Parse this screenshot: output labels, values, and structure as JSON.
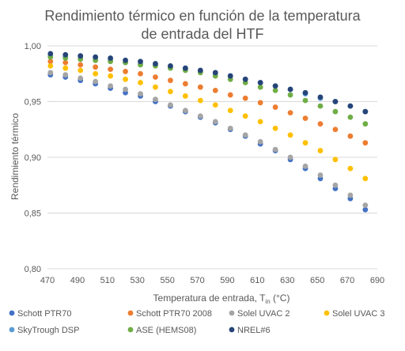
{
  "chart_data": {
    "type": "scatter",
    "title_line1": "Rendimiento térmico en función de la temperatura",
    "title_line2": "de entrada del HTF",
    "xlabel_main": "Temperatura de entrada, T",
    "xlabel_sub": "in",
    "xlabel_unit": " (°C)",
    "ylabel": "Rendimiento térmico",
    "xlim": [
      470,
      690
    ],
    "ylim": [
      0.8,
      1.0
    ],
    "x_ticks": [
      "470",
      "490",
      "510",
      "530",
      "550",
      "570",
      "590",
      "610",
      "630",
      "650",
      "670",
      "690"
    ],
    "y_ticks": [
      "0,80",
      "0,85",
      "0,90",
      "0,95",
      "1,00"
    ],
    "grid": "horizontal",
    "legend_position": "bottom",
    "x": [
      472,
      482,
      492,
      502,
      512,
      522,
      532,
      542,
      552,
      562,
      572,
      582,
      592,
      602,
      612,
      622,
      632,
      642,
      652,
      662,
      672,
      682
    ],
    "series": [
      {
        "name": "Schott PTR70",
        "color": "#4472C4",
        "values": [
          0.974,
          0.972,
          0.969,
          0.966,
          0.962,
          0.958,
          0.955,
          0.95,
          0.946,
          0.941,
          0.936,
          0.931,
          0.925,
          0.919,
          0.912,
          0.906,
          0.898,
          0.89,
          0.881,
          0.872,
          0.863,
          0.853
        ]
      },
      {
        "name": "Schott PTR70 2008",
        "color": "#ED7D31",
        "values": [
          0.986,
          0.985,
          0.983,
          0.981,
          0.979,
          0.977,
          0.975,
          0.972,
          0.969,
          0.966,
          0.963,
          0.96,
          0.956,
          0.953,
          0.949,
          0.945,
          0.94,
          0.935,
          0.93,
          0.925,
          0.919,
          0.913
        ]
      },
      {
        "name": "Solel UVAC 2",
        "color": "#A5A5A5",
        "values": [
          0.976,
          0.974,
          0.971,
          0.968,
          0.964,
          0.961,
          0.957,
          0.952,
          0.947,
          0.942,
          0.937,
          0.932,
          0.926,
          0.92,
          0.914,
          0.907,
          0.9,
          0.892,
          0.884,
          0.875,
          0.866,
          0.857
        ]
      },
      {
        "name": "Solel UVAC 3",
        "color": "#FFC000",
        "values": [
          0.982,
          0.98,
          0.978,
          0.975,
          0.973,
          0.97,
          0.967,
          0.963,
          0.959,
          0.955,
          0.951,
          0.947,
          0.942,
          0.937,
          0.932,
          0.926,
          0.92,
          0.913,
          0.906,
          0.898,
          0.89,
          0.881
        ]
      },
      {
        "name": "SkyTrough DSP",
        "color": "#5B9BD5",
        "values": [
          0.991,
          0.99,
          0.989,
          0.988,
          0.987,
          0.985,
          0.984,
          0.983,
          0.981,
          0.979,
          0.977,
          0.975,
          0.973,
          0.97,
          0.967,
          0.964,
          0.961,
          0.957,
          0.953,
          0.95,
          0.946,
          0.941
        ]
      },
      {
        "name": "ASE (HEMS08)",
        "color": "#70AD47",
        "values": [
          0.99,
          0.989,
          0.988,
          0.987,
          0.986,
          0.985,
          0.983,
          0.982,
          0.98,
          0.978,
          0.976,
          0.973,
          0.97,
          0.967,
          0.963,
          0.96,
          0.956,
          0.951,
          0.946,
          0.941,
          0.936,
          0.93
        ]
      },
      {
        "name": "NREL#6",
        "color": "#264478",
        "values": [
          0.993,
          0.992,
          0.991,
          0.99,
          0.989,
          0.987,
          0.986,
          0.984,
          0.982,
          0.98,
          0.978,
          0.976,
          0.973,
          0.97,
          0.967,
          0.964,
          0.961,
          0.958,
          0.954,
          0.95,
          0.946,
          0.941
        ]
      }
    ]
  }
}
